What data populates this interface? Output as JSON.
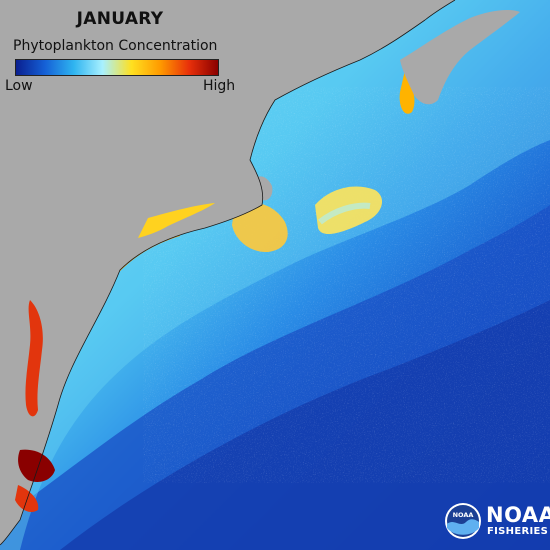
{
  "map": {
    "title": "JANUARY",
    "legend": {
      "label": "Phytoplankton Concentration",
      "low_label": "Low",
      "high_label": "High",
      "color_stops": [
        "#0a1f8f",
        "#1560d6",
        "#2fb4f0",
        "#a8f0ff",
        "#ffe020",
        "#ff9a00",
        "#e8300a",
        "#8a0000"
      ]
    },
    "colors": {
      "land": "#a9a9a9",
      "deep_ocean": "#1240b8",
      "mid_ocean": "#2a8ce6",
      "shelf_water": "#5ccff2",
      "coastal_high": "#ffb300",
      "estuary_max": "#d42a10"
    }
  },
  "logo": {
    "agency": "NOAA",
    "division": "FISHERIES",
    "emblem_text": "NOAA"
  }
}
